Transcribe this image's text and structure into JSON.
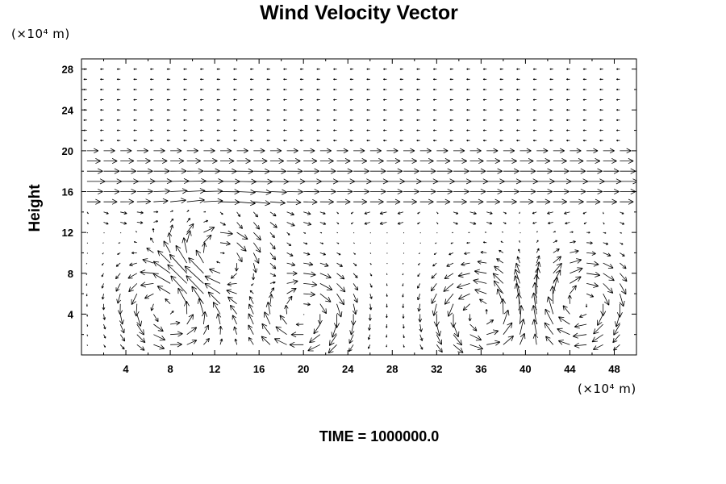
{
  "chart_data": {
    "type": "vector",
    "title": "Wind Velocity Vector",
    "ylabel": "Height",
    "xlabel": "",
    "x_unit": "(×10⁴ m)",
    "y_unit": "(×10⁴ m)",
    "xlim": [
      0,
      50
    ],
    "ylim": [
      0,
      29
    ],
    "xticks": [
      4,
      8,
      12,
      16,
      20,
      24,
      28,
      32,
      36,
      40,
      44,
      48
    ],
    "yticks": [
      4,
      8,
      12,
      16,
      20,
      24,
      28
    ],
    "grid": false,
    "legend": "none",
    "notes": "Vector field: weak easterly flow aloft (20-28), strong westerly jet near 15-19, convective circulations below 12 centered near x=8, x=20, x=36"
  },
  "footer": {
    "time_label": "TIME = 1000000.0"
  }
}
